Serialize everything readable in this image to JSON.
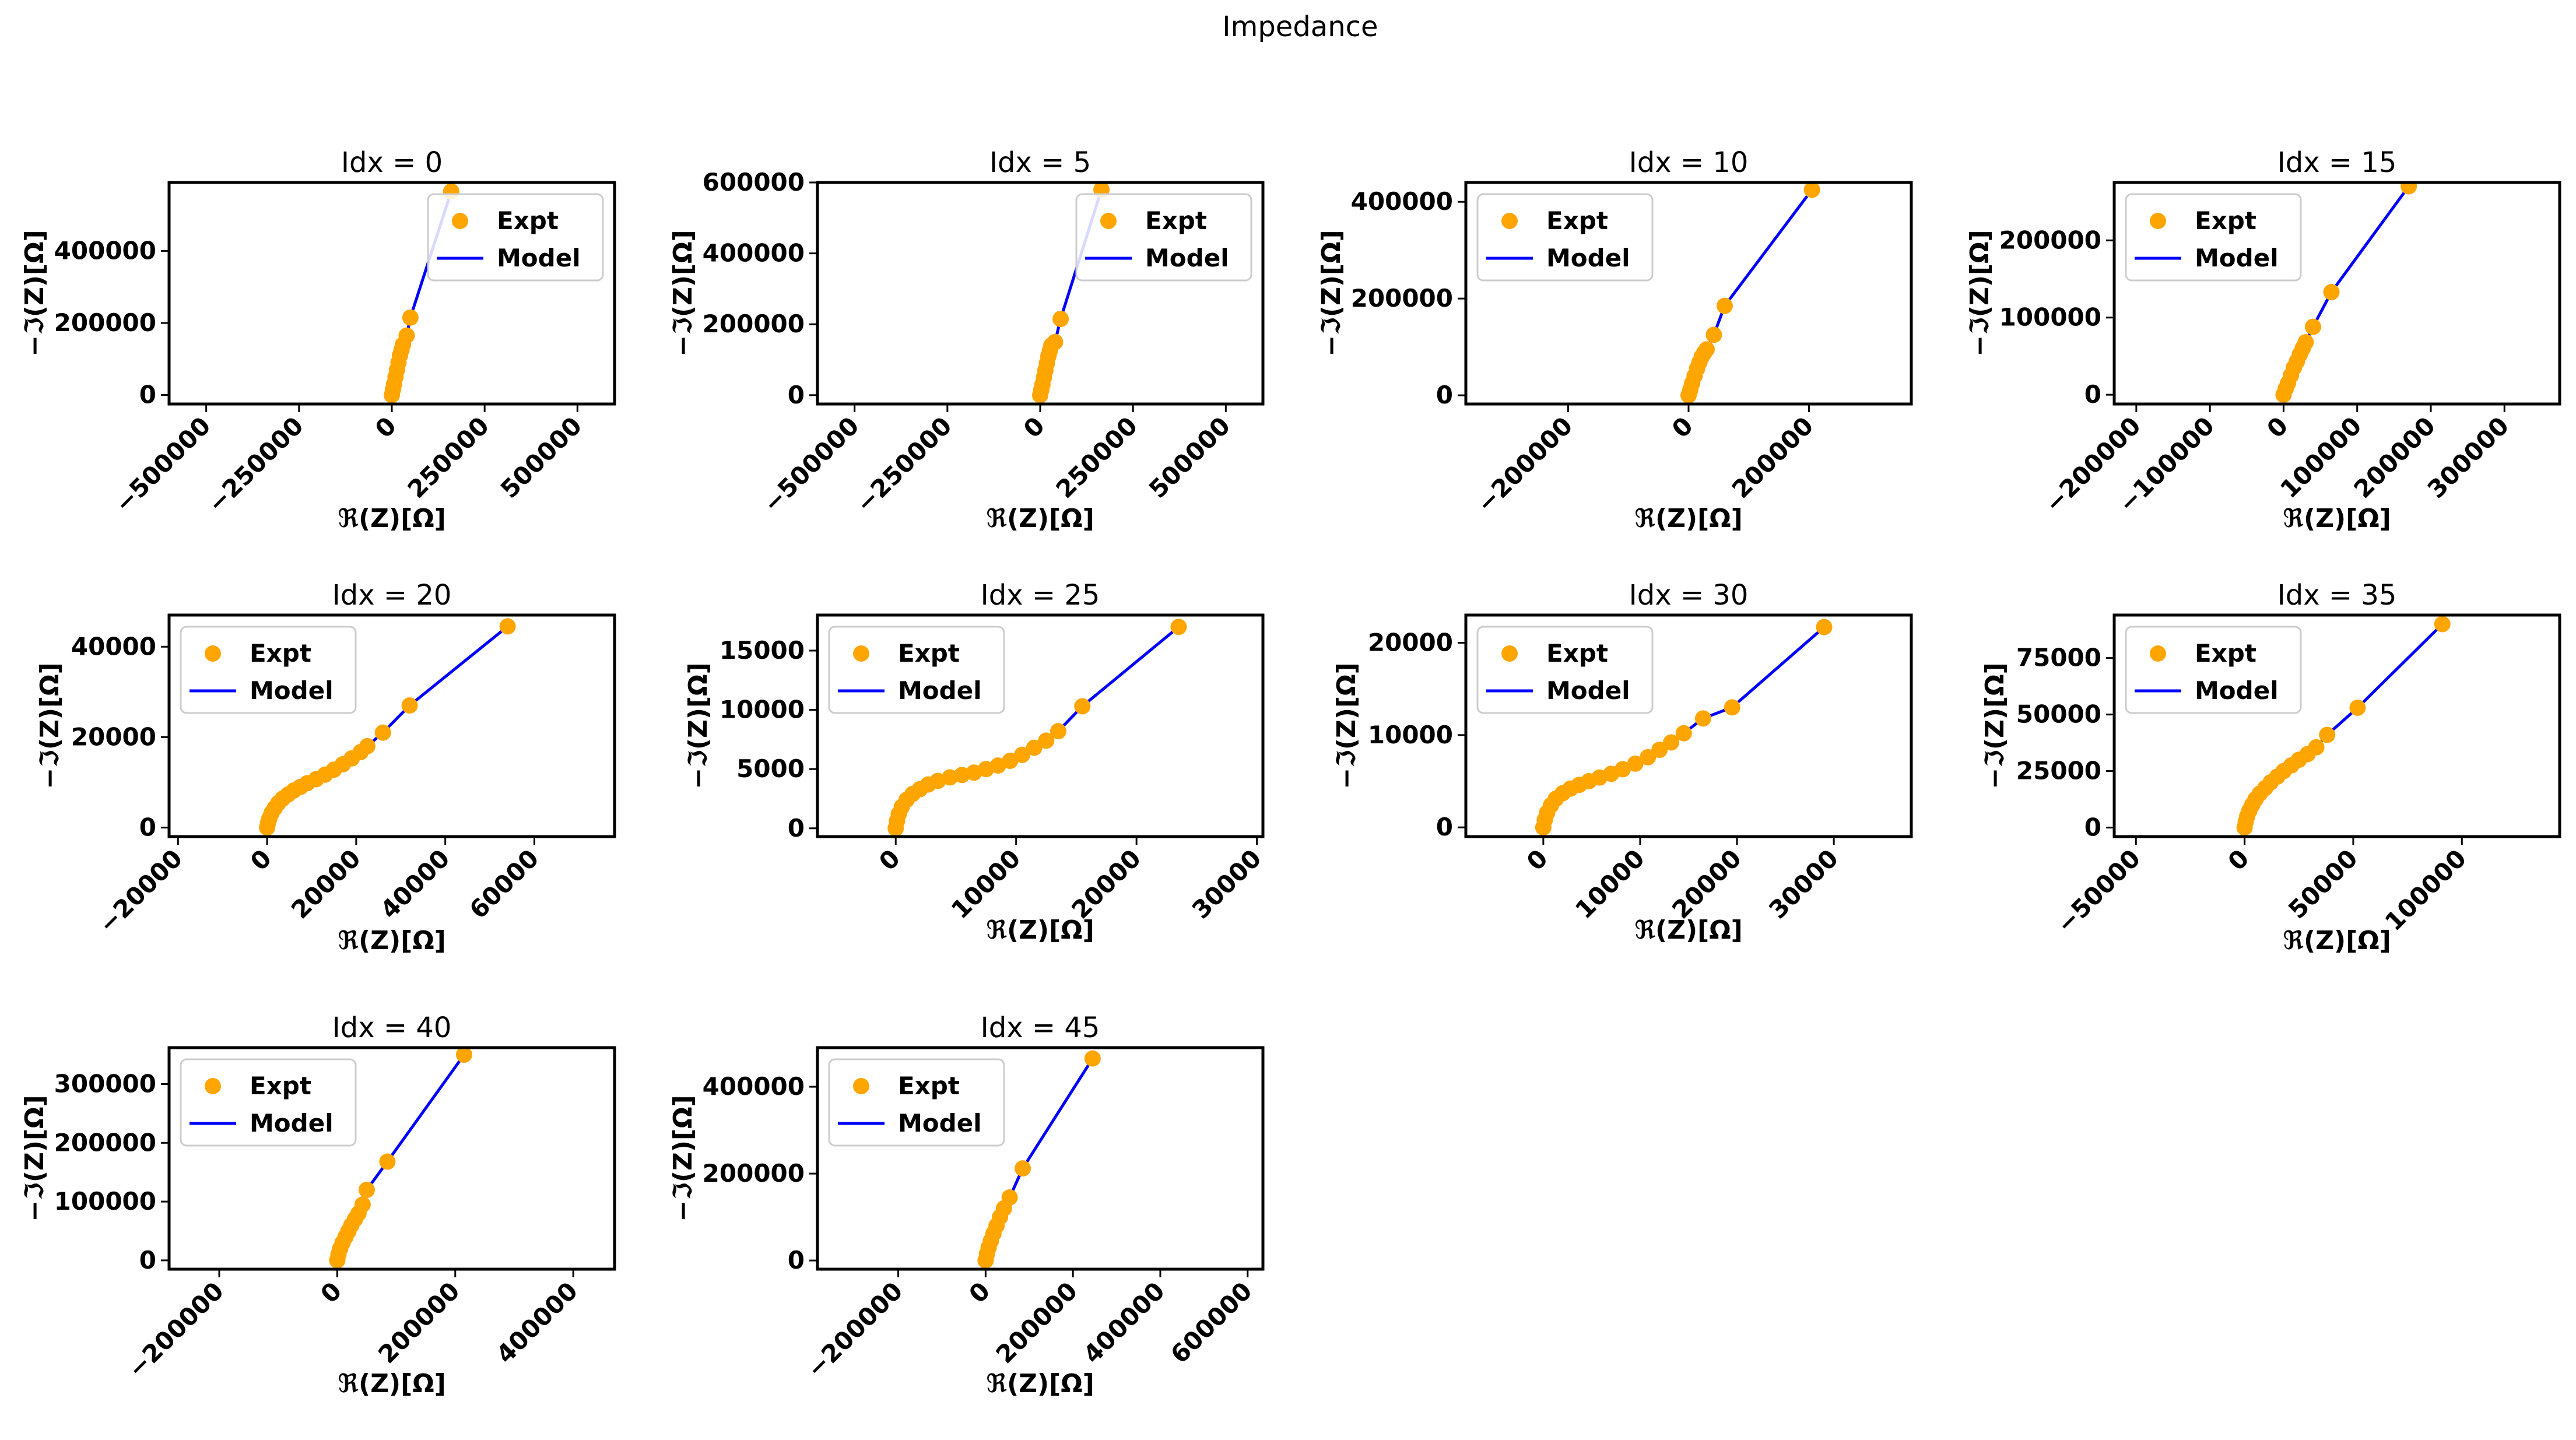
{
  "figure": {
    "suptitle": "Impedance"
  },
  "style": {
    "expt_color": "#FFA500",
    "model_color": "#0000FF"
  },
  "chart_data": [
    {
      "type": "scatter",
      "title": "Idx = 0",
      "xlabel": "ℜ(Z)[Ω]",
      "ylabel": "−ℑ(Z)[Ω]",
      "xlim": [
        -600000,
        600000
      ],
      "ylim": [
        -25000,
        590000
      ],
      "xticks": [
        -500000,
        -250000,
        0,
        250000,
        500000
      ],
      "xtick_labels": [
        "−500000",
        "−250000",
        "0",
        "250000",
        "500000"
      ],
      "yticks": [
        0,
        200000,
        400000
      ],
      "ytick_labels": [
        "0",
        "200000",
        "400000"
      ],
      "legend": {
        "position": "upper right",
        "entries": [
          "Expt",
          "Model"
        ]
      },
      "series": [
        {
          "name": "Expt",
          "x": [
            0,
            3000,
            6000,
            10000,
            14000,
            18000,
            22000,
            26000,
            30000,
            40000,
            50000,
            160000
          ],
          "y": [
            0,
            15000,
            30000,
            50000,
            70000,
            90000,
            110000,
            125000,
            140000,
            165000,
            215000,
            565000
          ]
        },
        {
          "name": "Model",
          "x": [
            0,
            6000,
            14000,
            22000,
            30000,
            40000,
            50000,
            160000
          ],
          "y": [
            0,
            30000,
            70000,
            110000,
            140000,
            165000,
            215000,
            565000
          ]
        }
      ]
    },
    {
      "type": "scatter",
      "title": "Idx = 5",
      "xlabel": "ℜ(Z)[Ω]",
      "ylabel": "−ℑ(Z)[Ω]",
      "xlim": [
        -600000,
        600000
      ],
      "ylim": [
        -25000,
        600000
      ],
      "xticks": [
        -500000,
        -250000,
        0,
        250000,
        500000
      ],
      "xtick_labels": [
        "−500000",
        "−250000",
        "0",
        "250000",
        "500000"
      ],
      "yticks": [
        0,
        200000,
        400000,
        600000
      ],
      "ytick_labels": [
        "0",
        "200000",
        "400000",
        "600000"
      ],
      "legend": {
        "position": "upper right",
        "entries": [
          "Expt",
          "Model"
        ]
      },
      "series": [
        {
          "name": "Expt",
          "x": [
            0,
            3000,
            6000,
            10000,
            14000,
            18000,
            22000,
            26000,
            30000,
            40000,
            55000,
            165000
          ],
          "y": [
            0,
            15000,
            30000,
            50000,
            70000,
            90000,
            110000,
            125000,
            140000,
            150000,
            215000,
            580000
          ]
        },
        {
          "name": "Model",
          "x": [
            0,
            6000,
            14000,
            22000,
            30000,
            40000,
            55000,
            165000
          ],
          "y": [
            0,
            30000,
            70000,
            110000,
            140000,
            150000,
            215000,
            580000
          ]
        }
      ]
    },
    {
      "type": "scatter",
      "title": "Idx = 10",
      "xlabel": "ℜ(Z)[Ω]",
      "ylabel": "−ℑ(Z)[Ω]",
      "xlim": [
        -370000,
        370000
      ],
      "ylim": [
        -18000,
        440000
      ],
      "xticks": [
        -200000,
        0,
        200000
      ],
      "xtick_labels": [
        "−200000",
        "0",
        "200000"
      ],
      "yticks": [
        0,
        200000,
        400000
      ],
      "ytick_labels": [
        "0",
        "200000",
        "400000"
      ],
      "legend": {
        "position": "upper left",
        "entries": [
          "Expt",
          "Model"
        ]
      },
      "series": [
        {
          "name": "Expt",
          "x": [
            0,
            3000,
            6000,
            10000,
            14000,
            18000,
            22000,
            26000,
            30000,
            42000,
            60000,
            205000
          ],
          "y": [
            0,
            12000,
            25000,
            40000,
            55000,
            68000,
            80000,
            88000,
            95000,
            125000,
            185000,
            425000
          ]
        },
        {
          "name": "Model",
          "x": [
            0,
            6000,
            14000,
            22000,
            30000,
            42000,
            60000,
            205000
          ],
          "y": [
            0,
            25000,
            55000,
            80000,
            95000,
            125000,
            185000,
            425000
          ]
        }
      ]
    },
    {
      "type": "scatter",
      "title": "Idx = 15",
      "xlabel": "ℜ(Z)[Ω]",
      "ylabel": "−ℑ(Z)[Ω]",
      "xlim": [
        -230000,
        375000
      ],
      "ylim": [
        -12000,
        275000
      ],
      "xticks": [
        -200000,
        -100000,
        0,
        100000,
        200000,
        300000
      ],
      "xtick_labels": [
        "−200000",
        "−100000",
        "0",
        "100000",
        "200000",
        "300000"
      ],
      "yticks": [
        0,
        100000,
        200000
      ],
      "ytick_labels": [
        "0",
        "100000",
        "200000"
      ],
      "legend": {
        "position": "upper left",
        "entries": [
          "Expt",
          "Model"
        ]
      },
      "series": [
        {
          "name": "Expt",
          "x": [
            0,
            3000,
            6000,
            10000,
            14000,
            18000,
            22000,
            26000,
            30000,
            40000,
            65000,
            170000
          ],
          "y": [
            0,
            8000,
            15000,
            25000,
            35000,
            43000,
            52000,
            60000,
            68000,
            88000,
            133000,
            270000
          ]
        },
        {
          "name": "Model",
          "x": [
            0,
            6000,
            14000,
            22000,
            30000,
            40000,
            65000,
            170000
          ],
          "y": [
            0,
            15000,
            35000,
            52000,
            68000,
            88000,
            133000,
            270000
          ]
        }
      ]
    },
    {
      "type": "scatter",
      "title": "Idx = 20",
      "xlabel": "ℜ(Z)[Ω]",
      "ylabel": "−ℑ(Z)[Ω]",
      "xlim": [
        -22000,
        78000
      ],
      "ylim": [
        -2000,
        47000
      ],
      "xticks": [
        -20000,
        0,
        20000,
        40000,
        60000
      ],
      "xtick_labels": [
        "−20000",
        "0",
        "20000",
        "40000",
        "60000"
      ],
      "yticks": [
        0,
        20000,
        40000
      ],
      "ytick_labels": [
        "0",
        "20000",
        "40000"
      ],
      "legend": {
        "position": "upper left",
        "entries": [
          "Expt",
          "Model"
        ]
      },
      "series": [
        {
          "name": "Expt",
          "x": [
            0,
            200,
            500,
            1000,
            1700,
            2500,
            3500,
            4700,
            6000,
            7500,
            9000,
            11000,
            13000,
            15000,
            17000,
            19000,
            21000,
            22500,
            26000,
            32000,
            54000
          ],
          "y": [
            0,
            1000,
            2000,
            3200,
            4300,
            5400,
            6400,
            7300,
            8200,
            9000,
            9800,
            10700,
            11700,
            12800,
            14000,
            15300,
            16700,
            18000,
            21000,
            27000,
            44500
          ]
        },
        {
          "name": "Model",
          "x": [
            0,
            500,
            1700,
            3500,
            6000,
            9000,
            13000,
            17000,
            21000,
            26000,
            32000,
            54000
          ],
          "y": [
            0,
            2000,
            4300,
            6400,
            8200,
            9800,
            11700,
            14000,
            16700,
            21000,
            27000,
            44500
          ]
        }
      ]
    },
    {
      "type": "scatter",
      "title": "Idx = 25",
      "xlabel": "ℜ(Z)[Ω]",
      "ylabel": "−ℑ(Z)[Ω]",
      "xlim": [
        -6500,
        30500
      ],
      "ylim": [
        -700,
        18000
      ],
      "xticks": [
        0,
        10000,
        20000,
        30000
      ],
      "xtick_labels": [
        "0",
        "10000",
        "20000",
        "30000"
      ],
      "yticks": [
        0,
        5000,
        10000,
        15000
      ],
      "ytick_labels": [
        "0",
        "5000",
        "10000",
        "15000"
      ],
      "legend": {
        "position": "upper left",
        "entries": [
          "Expt",
          "Model"
        ]
      },
      "series": [
        {
          "name": "Expt",
          "x": [
            0,
            100,
            250,
            500,
            900,
            1400,
            2000,
            2700,
            3500,
            4500,
            5500,
            6500,
            7500,
            8500,
            9500,
            10500,
            11500,
            12500,
            13500,
            15500,
            23500
          ],
          "y": [
            0,
            600,
            1200,
            1800,
            2400,
            2900,
            3300,
            3700,
            4000,
            4300,
            4500,
            4700,
            5000,
            5300,
            5700,
            6200,
            6800,
            7400,
            8200,
            10300,
            17000
          ]
        },
        {
          "name": "Model",
          "x": [
            0,
            250,
            900,
            2000,
            3500,
            5500,
            7500,
            9500,
            11500,
            13500,
            15500,
            23500
          ],
          "y": [
            0,
            1200,
            2400,
            3300,
            4000,
            4500,
            5000,
            5700,
            6800,
            8200,
            10300,
            17000
          ]
        }
      ]
    },
    {
      "type": "scatter",
      "title": "Idx = 30",
      "xlabel": "ℜ(Z)[Ω]",
      "ylabel": "−ℑ(Z)[Ω]",
      "xlim": [
        -8000,
        38000
      ],
      "ylim": [
        -1000,
        23000
      ],
      "xticks": [
        0,
        10000,
        20000,
        30000
      ],
      "xtick_labels": [
        "0",
        "10000",
        "20000",
        "30000"
      ],
      "yticks": [
        0,
        10000,
        20000
      ],
      "ytick_labels": [
        "0",
        "10000",
        "20000"
      ],
      "legend": {
        "position": "upper left",
        "entries": [
          "Expt",
          "Model"
        ]
      },
      "series": [
        {
          "name": "Expt",
          "x": [
            0,
            150,
            400,
            800,
            1300,
            2000,
            2800,
            3700,
            4700,
            5800,
            7000,
            8200,
            9500,
            10800,
            12000,
            13200,
            14500,
            16500,
            19500,
            29000
          ],
          "y": [
            0,
            800,
            1600,
            2400,
            3100,
            3700,
            4200,
            4600,
            5000,
            5400,
            5800,
            6300,
            6900,
            7600,
            8400,
            9200,
            10200,
            11800,
            13000,
            21700
          ]
        },
        {
          "name": "Model",
          "x": [
            0,
            400,
            1300,
            2800,
            4700,
            7000,
            9500,
            12000,
            14500,
            16500,
            19500,
            29000
          ],
          "y": [
            0,
            1600,
            3100,
            4200,
            5000,
            5800,
            6900,
            8400,
            10200,
            11800,
            13000,
            21700
          ]
        }
      ]
    },
    {
      "type": "scatter",
      "title": "Idx = 35",
      "xlabel": "ℜ(Z)[Ω]",
      "ylabel": "−ℑ(Z)[Ω]",
      "xlim": [
        -60000,
        145000
      ],
      "ylim": [
        -4000,
        94000
      ],
      "xticks": [
        -50000,
        0,
        50000,
        100000
      ],
      "xtick_labels": [
        "−50000",
        "0",
        "50000",
        "100000"
      ],
      "yticks": [
        0,
        25000,
        50000,
        75000
      ],
      "ytick_labels": [
        "0",
        "25000",
        "50000",
        "75000"
      ],
      "legend": {
        "position": "upper left",
        "entries": [
          "Expt",
          "Model"
        ]
      },
      "series": [
        {
          "name": "Expt",
          "x": [
            0,
            500,
            1200,
            2200,
            3500,
            5000,
            7000,
            9500,
            12000,
            15000,
            18000,
            21500,
            25000,
            29000,
            33000,
            38000,
            52000,
            91000
          ],
          "y": [
            0,
            2500,
            5000,
            7500,
            10000,
            12500,
            15000,
            17500,
            20000,
            22500,
            25000,
            27500,
            30000,
            32500,
            35500,
            41000,
            53000,
            90000
          ]
        },
        {
          "name": "Model",
          "x": [
            0,
            1200,
            3500,
            7000,
            12000,
            18000,
            25000,
            33000,
            38000,
            52000,
            91000
          ],
          "y": [
            0,
            5000,
            10000,
            15000,
            20000,
            25000,
            30000,
            35500,
            41000,
            53000,
            90000
          ]
        }
      ]
    },
    {
      "type": "scatter",
      "title": "Idx = 40",
      "xlabel": "ℜ(Z)[Ω]",
      "ylabel": "−ℑ(Z)[Ω]",
      "xlim": [
        -285000,
        470000
      ],
      "ylim": [
        -15000,
        362000
      ],
      "xticks": [
        -200000,
        0,
        200000,
        400000
      ],
      "xtick_labels": [
        "−200000",
        "0",
        "200000",
        "400000"
      ],
      "yticks": [
        0,
        100000,
        200000,
        300000
      ],
      "ytick_labels": [
        "0",
        "100000",
        "200000",
        "300000"
      ],
      "legend": {
        "position": "upper left",
        "entries": [
          "Expt",
          "Model"
        ]
      },
      "series": [
        {
          "name": "Expt",
          "x": [
            0,
            2000,
            5000,
            9000,
            14000,
            19000,
            24000,
            30000,
            36000,
            43000,
            50000,
            85000,
            215000
          ],
          "y": [
            0,
            10000,
            20000,
            30000,
            40000,
            50000,
            60000,
            70000,
            80000,
            95000,
            120000,
            168000,
            350000
          ]
        },
        {
          "name": "Model",
          "x": [
            0,
            5000,
            14000,
            24000,
            36000,
            50000,
            85000,
            215000
          ],
          "y": [
            0,
            20000,
            40000,
            60000,
            80000,
            120000,
            168000,
            350000
          ]
        }
      ]
    },
    {
      "type": "scatter",
      "title": "Idx = 45",
      "xlabel": "ℜ(Z)[Ω]",
      "ylabel": "−ℑ(Z)[Ω]",
      "xlim": [
        -385000,
        635000
      ],
      "ylim": [
        -20000,
        490000
      ],
      "xticks": [
        -200000,
        0,
        200000,
        400000,
        600000
      ],
      "xtick_labels": [
        "−200000",
        "0",
        "200000",
        "400000",
        "600000"
      ],
      "yticks": [
        0,
        200000,
        400000
      ],
      "ytick_labels": [
        "0",
        "200000",
        "400000"
      ],
      "legend": {
        "position": "upper left",
        "entries": [
          "Expt",
          "Model"
        ]
      },
      "series": [
        {
          "name": "Expt",
          "x": [
            0,
            3000,
            7000,
            12000,
            18000,
            25000,
            33000,
            42000,
            55000,
            85000,
            245000
          ],
          "y": [
            0,
            15000,
            30000,
            45000,
            62000,
            80000,
            100000,
            120000,
            145000,
            212000,
            465000
          ]
        },
        {
          "name": "Model",
          "x": [
            0,
            7000,
            18000,
            33000,
            55000,
            85000,
            245000
          ],
          "y": [
            0,
            30000,
            62000,
            100000,
            145000,
            212000,
            465000
          ]
        }
      ]
    }
  ]
}
